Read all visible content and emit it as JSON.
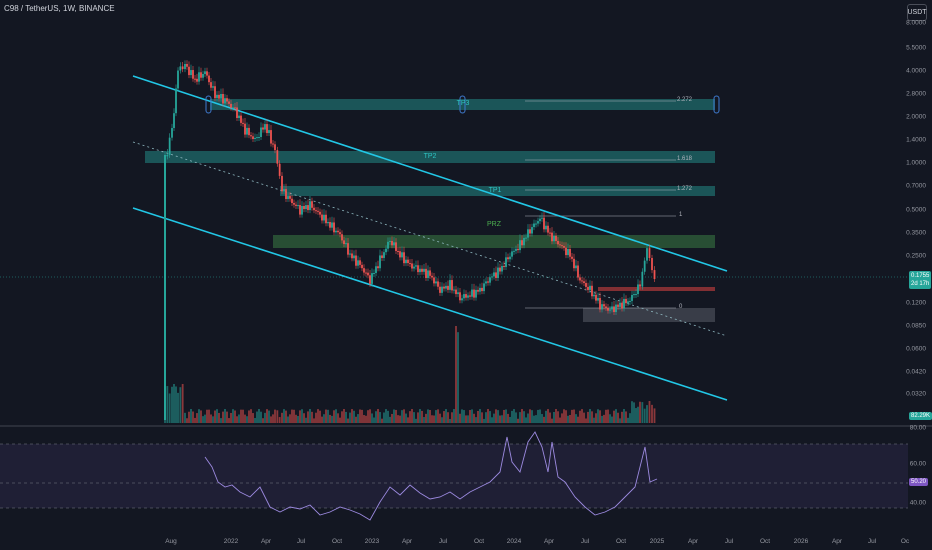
{
  "header": {
    "symbol_text": "C98 / TetherUS, 1W, BINANCE",
    "currency_label": "USDT"
  },
  "price_scale": {
    "ticks": [
      "8.0000",
      "5.5000",
      "4.0000",
      "2.8000",
      "2.0000",
      "1.4000",
      "1.0000",
      "0.7000",
      "0.5000",
      "0.3500",
      "0.2500",
      "0.1200",
      "0.0850",
      "0.0600",
      "0.0420",
      "0.0320"
    ],
    "current_price": "0.1755",
    "current_price_sub": "2d 17h",
    "volume_badge": "82.29K"
  },
  "rsi": {
    "ticks": [
      "80.00",
      "60.00",
      "40.00"
    ],
    "value_badge": "50.20"
  },
  "time_axis": {
    "labels": [
      "Aug",
      "2022",
      "Apr",
      "Jul",
      "Oct",
      "2023",
      "Apr",
      "Jul",
      "Oct",
      "2024",
      "Apr",
      "Jul",
      "Oct",
      "2025",
      "Apr",
      "Jul",
      "Oct",
      "2026",
      "Apr",
      "Jul",
      "Oc"
    ]
  },
  "zones": {
    "tp3": "TP3",
    "tp2": "TP2",
    "tp1": "TP1",
    "prz": "PRZ"
  },
  "fib_levels": [
    "2.272",
    "1.618",
    "1.272",
    "1",
    "0"
  ],
  "colors": {
    "background": "#131722",
    "channel": "#22c7e6",
    "up": "#26a69a",
    "down": "#ef5350",
    "zone": "#1f6b6b",
    "prz": "#2e5d3a",
    "rsi": "#9c8ae0"
  }
}
